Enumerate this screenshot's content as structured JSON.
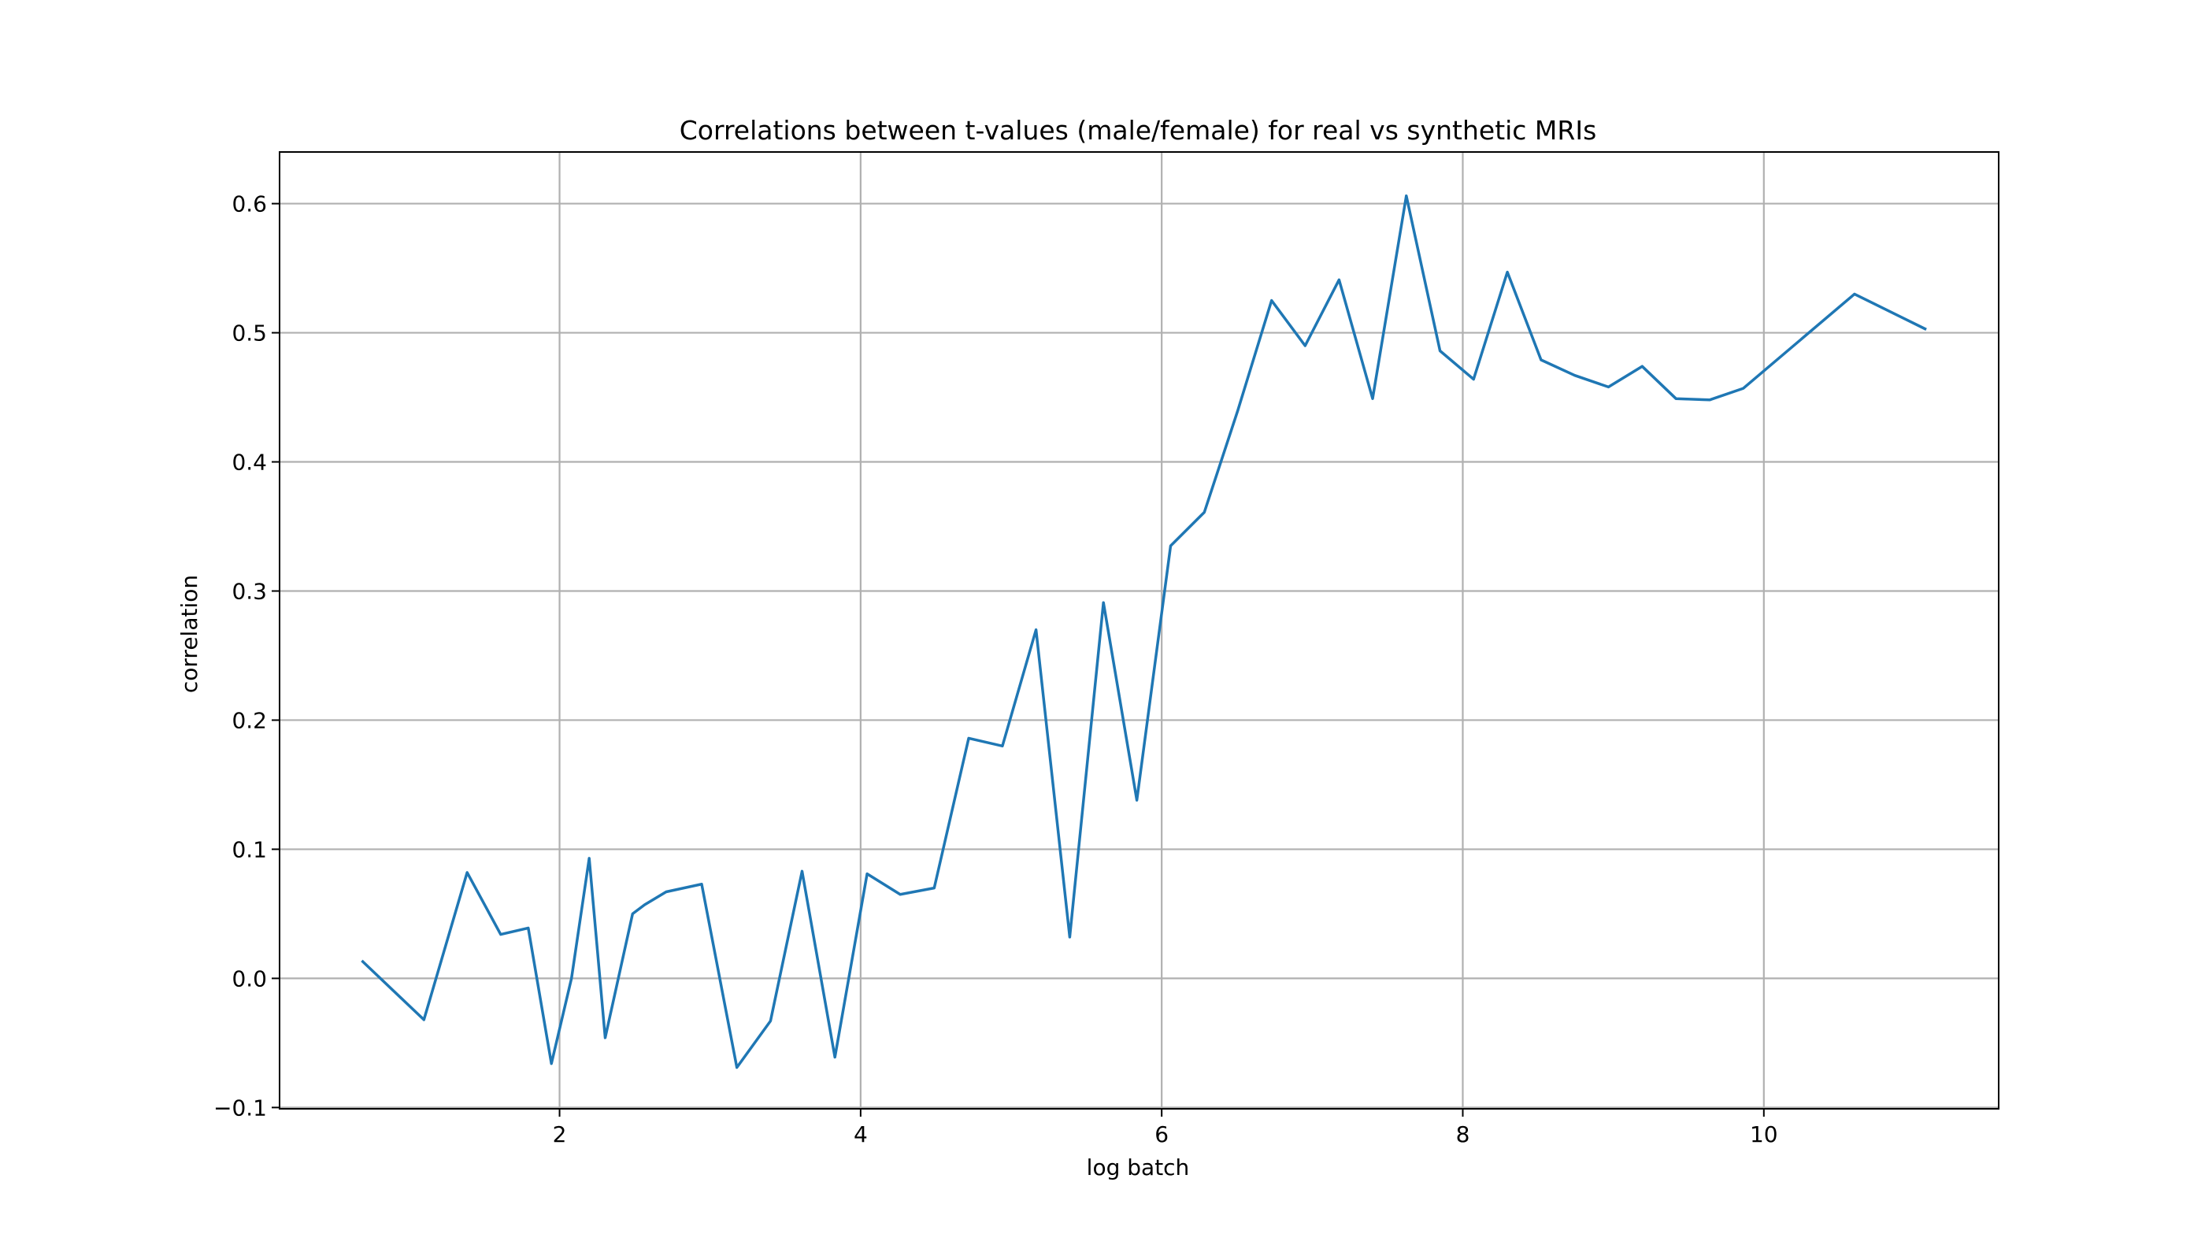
{
  "chart_data": {
    "type": "line",
    "title": "Correlations between t-values (male/female) for real vs synthetic MRIs",
    "xlabel": "log batch",
    "ylabel": "correlation",
    "xlim": [
      0.14,
      11.56
    ],
    "ylim": [
      -0.101,
      0.64
    ],
    "xticks": [
      2,
      4,
      6,
      8,
      10
    ],
    "xtick_labels": [
      "2",
      "4",
      "6",
      "8",
      "10"
    ],
    "yticks": [
      -0.1,
      0.0,
      0.1,
      0.2,
      0.3,
      0.4,
      0.5,
      0.6
    ],
    "ytick_labels": [
      "−0.1",
      "0.0",
      "0.1",
      "0.2",
      "0.3",
      "0.4",
      "0.5",
      "0.6"
    ],
    "grid": true,
    "legend": "none",
    "series": [
      {
        "color": "#1f77b4",
        "x": [
          0.693,
          1.099,
          1.386,
          1.609,
          1.792,
          1.946,
          2.079,
          2.197,
          2.303,
          2.485,
          2.565,
          2.708,
          2.944,
          3.178,
          3.401,
          3.611,
          3.829,
          4.043,
          4.263,
          4.489,
          4.718,
          4.942,
          5.165,
          5.389,
          5.613,
          5.835,
          6.059,
          6.283,
          6.506,
          6.73,
          6.953,
          7.178,
          7.401,
          7.625,
          7.849,
          8.072,
          8.296,
          8.52,
          8.744,
          8.968,
          9.192,
          9.416,
          9.64,
          9.864,
          10.602,
          11.071
        ],
        "y": [
          0.013,
          -0.032,
          0.082,
          0.034,
          0.039,
          -0.066,
          0.0,
          0.093,
          -0.046,
          0.05,
          0.057,
          0.067,
          0.073,
          -0.069,
          -0.033,
          0.083,
          -0.061,
          0.081,
          0.065,
          0.07,
          0.186,
          0.18,
          0.27,
          0.032,
          0.291,
          0.138,
          0.335,
          0.361,
          0.44,
          0.525,
          0.49,
          0.541,
          0.449,
          0.606,
          0.486,
          0.464,
          0.547,
          0.479,
          0.467,
          0.458,
          0.474,
          0.449,
          0.448,
          0.457,
          0.53,
          0.503
        ]
      }
    ]
  }
}
